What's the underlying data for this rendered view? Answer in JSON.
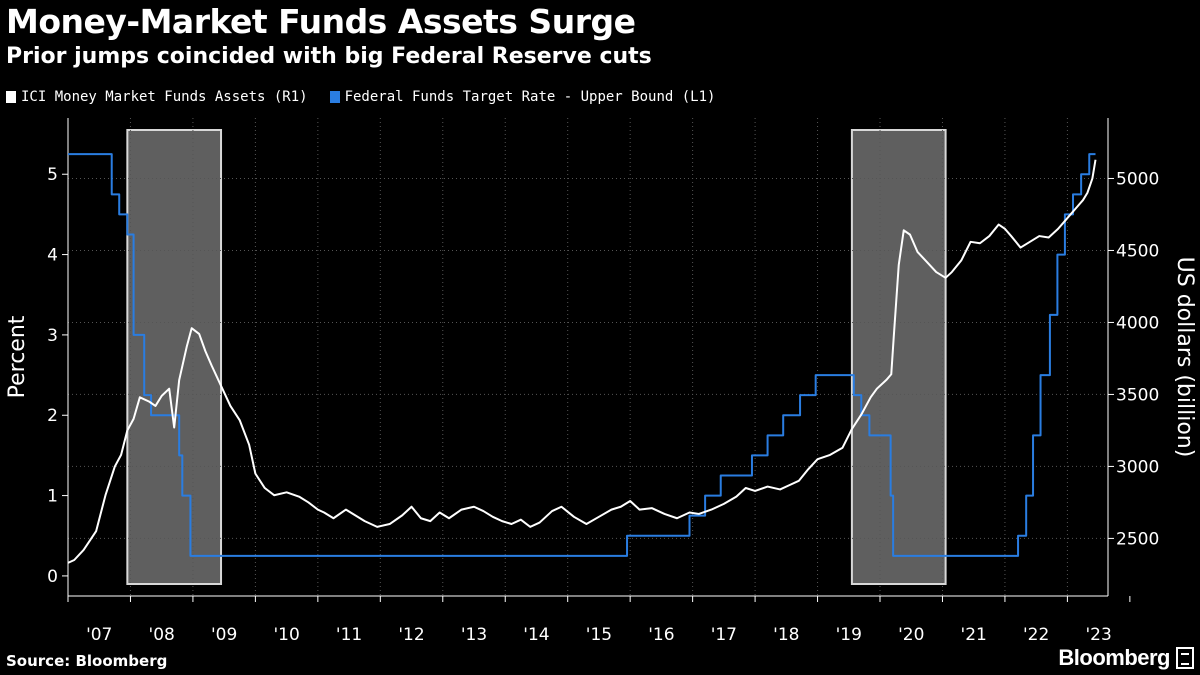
{
  "title": "Money-Market Funds Assets Surge",
  "subtitle": "Prior jumps coincided with big Federal Reserve cuts",
  "source": "Source: Bloomberg",
  "brand": "Bloomberg",
  "colors": {
    "background": "#000000",
    "assets_series": "#ffffff",
    "rate_series": "#2a7de1",
    "recession_fill": "#5f5f5f",
    "grid": "#555555"
  },
  "legend": [
    {
      "label": "ICI Money Market Funds Assets  (R1)",
      "color": "#ffffff"
    },
    {
      "label": "Federal Funds Target Rate - Upper Bound  (L1)",
      "color": "#2a7de1"
    }
  ],
  "chart_data": {
    "type": "line",
    "xlabel": "",
    "x_ticks": [
      "'07",
      "'08",
      "'09",
      "'10",
      "'11",
      "'12",
      "'13",
      "'14",
      "'15",
      "'16",
      "'17",
      "'18",
      "'19",
      "'20",
      "'21",
      "'22",
      "'23"
    ],
    "x_range": [
      2007.0,
      2023.65
    ],
    "y_left": {
      "label": "Percent",
      "ticks": [
        0,
        1,
        2,
        3,
        4,
        5
      ],
      "range": [
        -0.25,
        5.7
      ]
    },
    "y_right": {
      "label": "US dollars (billion)",
      "ticks": [
        2500,
        3000,
        3500,
        4000,
        4500,
        5000
      ],
      "range": [
        2100,
        5420
      ]
    },
    "grid": true,
    "legend_position": "top-left",
    "shaded_periods": [
      {
        "start": 2007.95,
        "end": 2009.45
      },
      {
        "start": 2019.55,
        "end": 2021.05
      }
    ],
    "series": [
      {
        "name": "Federal Funds Target Rate - Upper Bound",
        "axis": "left",
        "step": true,
        "points": [
          [
            2007.0,
            5.25
          ],
          [
            2007.7,
            4.75
          ],
          [
            2007.82,
            4.5
          ],
          [
            2007.95,
            4.25
          ],
          [
            2008.05,
            3.0
          ],
          [
            2008.22,
            2.25
          ],
          [
            2008.33,
            2.0
          ],
          [
            2008.78,
            1.5
          ],
          [
            2008.83,
            1.0
          ],
          [
            2008.96,
            0.25
          ],
          [
            2015.95,
            0.5
          ],
          [
            2016.95,
            0.75
          ],
          [
            2017.2,
            1.0
          ],
          [
            2017.45,
            1.25
          ],
          [
            2017.95,
            1.5
          ],
          [
            2018.2,
            1.75
          ],
          [
            2018.45,
            2.0
          ],
          [
            2018.72,
            2.25
          ],
          [
            2018.97,
            2.5
          ],
          [
            2019.58,
            2.25
          ],
          [
            2019.7,
            2.0
          ],
          [
            2019.83,
            1.75
          ],
          [
            2020.17,
            1.0
          ],
          [
            2020.21,
            0.25
          ],
          [
            2022.21,
            0.5
          ],
          [
            2022.34,
            1.0
          ],
          [
            2022.45,
            1.75
          ],
          [
            2022.57,
            2.5
          ],
          [
            2022.72,
            3.25
          ],
          [
            2022.84,
            4.0
          ],
          [
            2022.96,
            4.5
          ],
          [
            2023.09,
            4.75
          ],
          [
            2023.22,
            5.0
          ],
          [
            2023.35,
            5.25
          ]
        ]
      },
      {
        "name": "ICI Money Market Funds Assets",
        "axis": "right",
        "points": [
          [
            2007.0,
            2330
          ],
          [
            2007.1,
            2350
          ],
          [
            2007.25,
            2420
          ],
          [
            2007.45,
            2550
          ],
          [
            2007.6,
            2800
          ],
          [
            2007.75,
            3000
          ],
          [
            2007.85,
            3080
          ],
          [
            2007.95,
            3250
          ],
          [
            2008.05,
            3330
          ],
          [
            2008.15,
            3480
          ],
          [
            2008.3,
            3450
          ],
          [
            2008.4,
            3420
          ],
          [
            2008.5,
            3490
          ],
          [
            2008.62,
            3540
          ],
          [
            2008.7,
            3270
          ],
          [
            2008.78,
            3600
          ],
          [
            2008.9,
            3830
          ],
          [
            2008.98,
            3960
          ],
          [
            2009.1,
            3920
          ],
          [
            2009.2,
            3800
          ],
          [
            2009.3,
            3700
          ],
          [
            2009.45,
            3560
          ],
          [
            2009.6,
            3420
          ],
          [
            2009.75,
            3320
          ],
          [
            2009.9,
            3150
          ],
          [
            2010.0,
            2950
          ],
          [
            2010.15,
            2850
          ],
          [
            2010.3,
            2800
          ],
          [
            2010.5,
            2820
          ],
          [
            2010.7,
            2790
          ],
          [
            2010.85,
            2750
          ],
          [
            2011.0,
            2700
          ],
          [
            2011.1,
            2680
          ],
          [
            2011.25,
            2640
          ],
          [
            2011.45,
            2700
          ],
          [
            2011.6,
            2660
          ],
          [
            2011.75,
            2620
          ],
          [
            2011.95,
            2580
          ],
          [
            2012.15,
            2600
          ],
          [
            2012.35,
            2660
          ],
          [
            2012.5,
            2720
          ],
          [
            2012.65,
            2640
          ],
          [
            2012.8,
            2620
          ],
          [
            2012.95,
            2680
          ],
          [
            2013.1,
            2640
          ],
          [
            2013.3,
            2700
          ],
          [
            2013.5,
            2720
          ],
          [
            2013.65,
            2690
          ],
          [
            2013.8,
            2650
          ],
          [
            2013.95,
            2620
          ],
          [
            2014.1,
            2600
          ],
          [
            2014.25,
            2630
          ],
          [
            2014.4,
            2580
          ],
          [
            2014.55,
            2610
          ],
          [
            2014.75,
            2690
          ],
          [
            2014.9,
            2720
          ],
          [
            2015.1,
            2650
          ],
          [
            2015.3,
            2600
          ],
          [
            2015.5,
            2650
          ],
          [
            2015.7,
            2700
          ],
          [
            2015.85,
            2720
          ],
          [
            2016.0,
            2760
          ],
          [
            2016.15,
            2700
          ],
          [
            2016.35,
            2710
          ],
          [
            2016.55,
            2670
          ],
          [
            2016.75,
            2640
          ],
          [
            2016.95,
            2680
          ],
          [
            2017.1,
            2670
          ],
          [
            2017.3,
            2700
          ],
          [
            2017.5,
            2740
          ],
          [
            2017.7,
            2790
          ],
          [
            2017.85,
            2850
          ],
          [
            2018.0,
            2830
          ],
          [
            2018.2,
            2860
          ],
          [
            2018.4,
            2840
          ],
          [
            2018.55,
            2870
          ],
          [
            2018.7,
            2900
          ],
          [
            2018.85,
            2980
          ],
          [
            2019.0,
            3050
          ],
          [
            2019.2,
            3080
          ],
          [
            2019.4,
            3130
          ],
          [
            2019.55,
            3260
          ],
          [
            2019.7,
            3360
          ],
          [
            2019.85,
            3480
          ],
          [
            2019.95,
            3540
          ],
          [
            2020.1,
            3600
          ],
          [
            2020.18,
            3640
          ],
          [
            2020.22,
            3900
          ],
          [
            2020.3,
            4400
          ],
          [
            2020.38,
            4640
          ],
          [
            2020.48,
            4610
          ],
          [
            2020.6,
            4490
          ],
          [
            2020.75,
            4420
          ],
          [
            2020.9,
            4350
          ],
          [
            2021.05,
            4310
          ],
          [
            2021.15,
            4350
          ],
          [
            2021.3,
            4430
          ],
          [
            2021.45,
            4560
          ],
          [
            2021.6,
            4550
          ],
          [
            2021.75,
            4600
          ],
          [
            2021.9,
            4680
          ],
          [
            2022.0,
            4650
          ],
          [
            2022.1,
            4600
          ],
          [
            2022.25,
            4520
          ],
          [
            2022.4,
            4560
          ],
          [
            2022.55,
            4600
          ],
          [
            2022.7,
            4590
          ],
          [
            2022.85,
            4650
          ],
          [
            2022.95,
            4700
          ],
          [
            2023.05,
            4750
          ],
          [
            2023.15,
            4800
          ],
          [
            2023.25,
            4850
          ],
          [
            2023.32,
            4900
          ],
          [
            2023.4,
            5000
          ],
          [
            2023.45,
            5130
          ]
        ]
      }
    ]
  }
}
